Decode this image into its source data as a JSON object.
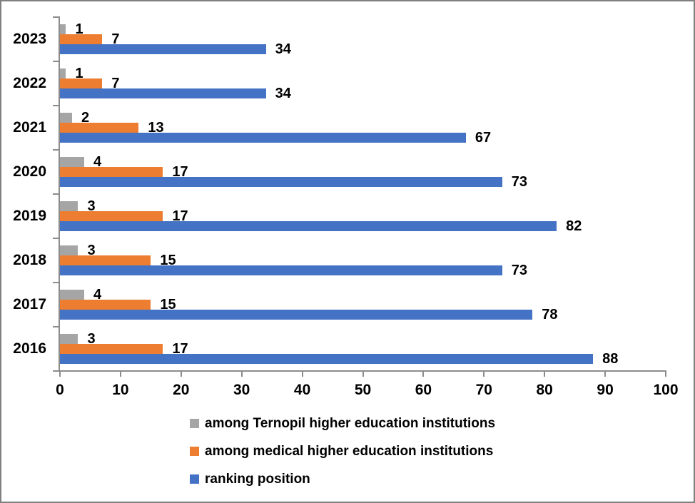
{
  "chart_data": {
    "type": "bar",
    "orientation": "horizontal",
    "title": "",
    "categories": [
      "2023",
      "2022",
      "2021",
      "2020",
      "2019",
      "2018",
      "2017",
      "2016"
    ],
    "series": [
      {
        "name": "among Ternopil higher education institutions",
        "color": "#a5a5a5",
        "values": [
          1,
          1,
          2,
          4,
          3,
          3,
          4,
          3
        ]
      },
      {
        "name": "among medical higher education institutions",
        "color": "#ed7d31",
        "values": [
          7,
          7,
          13,
          17,
          17,
          15,
          15,
          17
        ]
      },
      {
        "name": "ranking position",
        "color": "#4472c4",
        "values": [
          34,
          34,
          67,
          73,
          82,
          73,
          78,
          88
        ]
      }
    ],
    "xlim": [
      0,
      100
    ],
    "xticks": [
      0,
      10,
      20,
      30,
      40,
      50,
      60,
      70,
      80,
      90,
      100
    ],
    "grid": false,
    "data_labels": true,
    "legend_position": "bottom-left"
  },
  "colors": {
    "axis": "#8c8c8c",
    "text": "#000000",
    "frame_border": "#808080",
    "background": "#ffffff"
  }
}
